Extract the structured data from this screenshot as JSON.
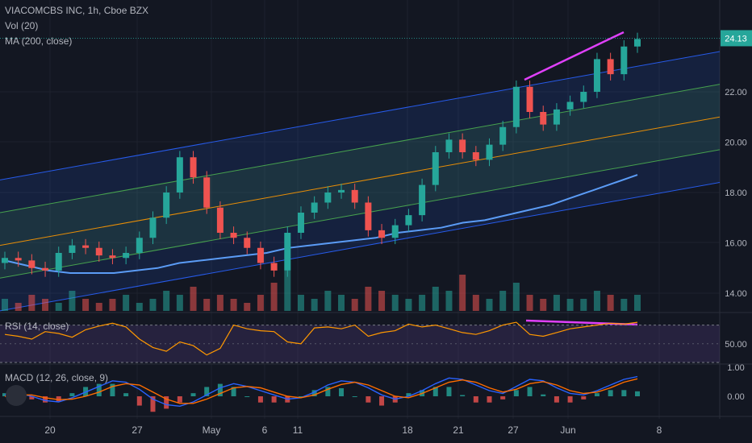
{
  "header": {
    "symbol_line": "VIACOMCBS INC, 1h, Cboe BZX",
    "vol_label": "Vol (20)",
    "ma_label": "MA (200, close)"
  },
  "rsi": {
    "label": "RSI (14, close)",
    "level": "50.00"
  },
  "macd": {
    "label": "MACD (12, 26, close, 9)",
    "levels": [
      "1.00",
      "0.00"
    ]
  },
  "colors": {
    "background": "#131722",
    "up_candle": "#26a69a",
    "down_candle": "#ef5350",
    "channel_blue": "#2962ff",
    "channel_green": "#4caf50",
    "channel_orange": "#ff9800",
    "ma_line": "#5b9cf6",
    "annotation": "#e040fb",
    "price_tag": "#26a69a"
  },
  "chart_data": {
    "type": "candlestick",
    "symbol": "VIACOMCBS INC",
    "timeframe": "1h",
    "exchange": "Cboe BZX",
    "last_price": "24.13",
    "price_ticks": [
      "22.00",
      "20.00",
      "18.00",
      "16.00",
      "14.00"
    ],
    "price_tick_values": [
      22,
      20,
      18,
      16,
      14
    ],
    "x_tick_labels": [
      "20",
      "27",
      "May",
      "6",
      "11",
      "18",
      "21",
      "27",
      "Jun",
      "8"
    ],
    "price_series": [
      15.4,
      15.3,
      15.0,
      14.9,
      15.6,
      15.9,
      15.8,
      15.5,
      15.4,
      15.6,
      16.2,
      17.0,
      18.0,
      19.4,
      18.6,
      17.4,
      16.4,
      16.2,
      15.8,
      15.2,
      14.9,
      16.4,
      17.2,
      17.6,
      18.0,
      18.1,
      17.6,
      16.5,
      16.2,
      16.7,
      17.1,
      18.3,
      19.6,
      20.1,
      19.6,
      19.3,
      19.9,
      20.6,
      22.2,
      21.2,
      20.7,
      21.3,
      21.6,
      22.0,
      23.3,
      22.7,
      23.8,
      24.1
    ],
    "ma_series": [
      15.3,
      15.1,
      14.9,
      14.8,
      14.8,
      14.8,
      14.9,
      15.0,
      15.2,
      15.3,
      15.4,
      15.5,
      15.6,
      15.8,
      15.9,
      16.0,
      16.1,
      16.2,
      16.4,
      16.5,
      16.6,
      16.8,
      16.9,
      17.1,
      17.3,
      17.5,
      17.8,
      18.1,
      18.4,
      18.7
    ],
    "channel": {
      "start_price": 15.9,
      "end_price": 21.0,
      "half_width_outer": 2.6,
      "half_width_inner": 1.3
    },
    "rsi_series": [
      60,
      58,
      55,
      63,
      61,
      57,
      65,
      69,
      72,
      68,
      55,
      46,
      42,
      52,
      48,
      38,
      45,
      70,
      66,
      64,
      63,
      52,
      50,
      67,
      68,
      66,
      70,
      58,
      62,
      64,
      71,
      68,
      70,
      66,
      62,
      60,
      64,
      70,
      73,
      60,
      58,
      62,
      66,
      68,
      70,
      72,
      71,
      73
    ],
    "macd_series": [
      0.05,
      0.1,
      0.0,
      -0.15,
      -0.2,
      -0.05,
      0.15,
      0.35,
      0.55,
      0.5,
      0.25,
      -0.1,
      -0.3,
      -0.35,
      -0.2,
      0.05,
      0.3,
      0.45,
      0.35,
      0.2,
      0.05,
      -0.1,
      -0.05,
      0.15,
      0.4,
      0.55,
      0.5,
      0.3,
      0.05,
      -0.1,
      0.0,
      0.2,
      0.45,
      0.65,
      0.6,
      0.4,
      0.2,
      0.1,
      0.35,
      0.6,
      0.55,
      0.3,
      0.1,
      0.05,
      0.2,
      0.4,
      0.6,
      0.7
    ],
    "signal_series": [
      0.0,
      0.05,
      0.05,
      -0.05,
      -0.12,
      -0.1,
      0.0,
      0.15,
      0.35,
      0.45,
      0.4,
      0.15,
      -0.1,
      -0.25,
      -0.25,
      -0.1,
      0.1,
      0.3,
      0.35,
      0.3,
      0.15,
      0.0,
      -0.05,
      0.05,
      0.25,
      0.42,
      0.5,
      0.4,
      0.2,
      0.0,
      -0.05,
      0.1,
      0.3,
      0.5,
      0.58,
      0.5,
      0.3,
      0.15,
      0.25,
      0.45,
      0.52,
      0.4,
      0.2,
      0.1,
      0.15,
      0.3,
      0.5,
      0.62
    ],
    "volume_series": [
      3,
      2,
      4,
      3,
      2,
      5,
      3,
      2,
      3,
      4,
      2,
      3,
      5,
      4,
      6,
      3,
      4,
      3,
      2,
      4,
      7,
      10,
      4,
      3,
      5,
      4,
      3,
      6,
      5,
      4,
      3,
      4,
      6,
      5,
      9,
      4,
      3,
      5,
      7,
      4,
      3,
      4,
      3,
      3,
      5,
      4,
      3,
      4
    ]
  }
}
